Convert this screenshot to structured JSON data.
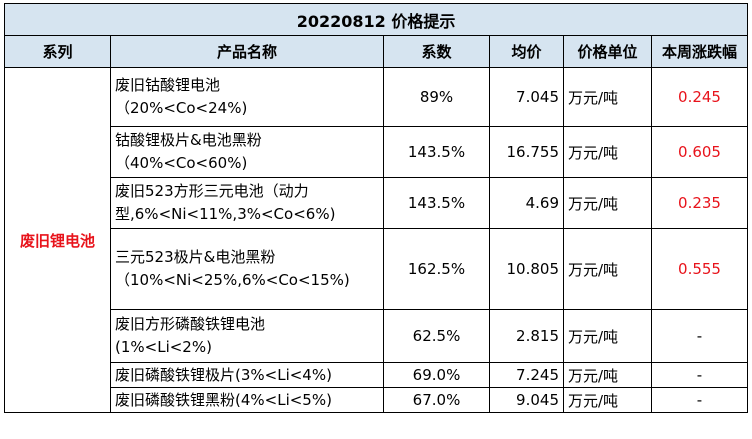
{
  "title": "20220812 价格提示",
  "headers": {
    "series": "系列",
    "product": "产品名称",
    "coefficient": "系数",
    "avg_price": "均价",
    "unit": "价格单位",
    "weekly_change": "本周涨跌幅"
  },
  "series_name": "废旧锂电池",
  "rows": [
    {
      "name_l1": "废旧钴酸锂电池",
      "name_l2": "（20%<Co<24%)",
      "coefficient": "89%",
      "avg_price": "7.045",
      "unit": "万元/吨",
      "change": "0.245"
    },
    {
      "name_l1": "钴酸锂极片&电池黑粉",
      "name_l2": "（40%<Co<60%)",
      "coefficient": "143.5%",
      "avg_price": "16.755",
      "unit": "万元/吨",
      "change": "0.605"
    },
    {
      "name_l1": "废旧523方形三元电池（动力",
      "name_l2": "型,6%<Ni<11%,3%<Co<6%)",
      "coefficient": "143.5%",
      "avg_price": "4.69",
      "unit": "万元/吨",
      "change": "0.235"
    },
    {
      "name_l1": "三元523极片&电池黑粉",
      "name_l2": "（10%<Ni<25%,6%<Co<15%)",
      "coefficient": "162.5%",
      "avg_price": "10.805",
      "unit": "万元/吨",
      "change": "0.555"
    },
    {
      "name_l1": "废旧方形磷酸铁锂电池",
      "name_l2": "(1%<Li<2%)",
      "coefficient": "62.5%",
      "avg_price": "2.815",
      "unit": "万元/吨",
      "change": "-"
    },
    {
      "name_l1": "废旧磷酸铁锂极片(3%<Li<4%)",
      "name_l2": "",
      "coefficient": "69.0%",
      "avg_price": "7.245",
      "unit": "万元/吨",
      "change": "-"
    },
    {
      "name_l1": "废旧磷酸铁锂黑粉(4%<Li<5%)",
      "name_l2": "",
      "coefficient": "67.0%",
      "avg_price": "9.045",
      "unit": "万元/吨",
      "change": "-"
    }
  ],
  "colors": {
    "header_bg": "#d6e4f0",
    "highlight_red": "#e8131b"
  }
}
